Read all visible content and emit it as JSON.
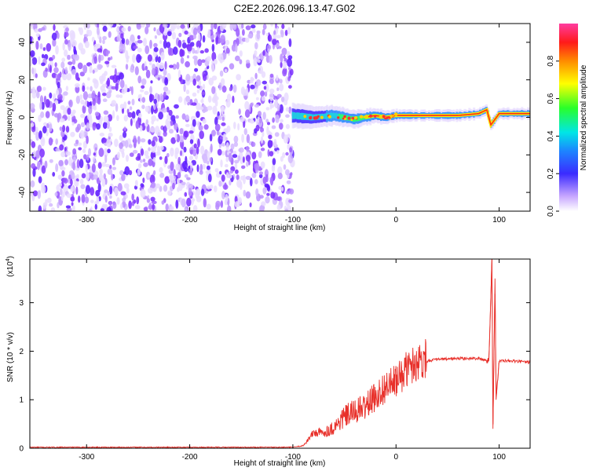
{
  "title": "C2E2.2026.096.13.47.G02",
  "chart_data": [
    {
      "type": "heatmap",
      "xlabel": "Height of straight line (km)",
      "ylabel": "Frequency (Hz)",
      "xlim": [
        -355,
        130
      ],
      "ylim": [
        -50,
        50
      ],
      "x_ticks": [
        -300,
        -200,
        -100,
        0,
        100
      ],
      "x_tick_labels": [
        "-300",
        "-200",
        "-100",
        "0",
        "100"
      ],
      "y_ticks": [
        -40,
        -20,
        0,
        20,
        40
      ],
      "y_tick_labels": [
        "-40",
        "-20",
        "0",
        "20",
        "40"
      ],
      "colorbar": {
        "label": "Normalized spectral amplitude",
        "range": [
          0,
          1
        ],
        "ticks": [
          0.0,
          0.2,
          0.4,
          0.6,
          0.8
        ],
        "tick_labels": [
          "0.0",
          "0.2",
          "0.4",
          "0.6",
          "0.8"
        ],
        "colormap": "rainbow (white-purple-blue-cyan-green-yellow-orange-red-pink)"
      },
      "regions": [
        {
          "x_range": [
            -355,
            -100
          ],
          "description": "broadband noise, amplitude ~0.05-0.2 over full frequency range"
        },
        {
          "x_range": [
            -100,
            130
          ],
          "description": "narrow tone near 0-2 Hz, amplitude rising to ~0.7-0.9 above 0 km; disturbance near 90 km"
        }
      ],
      "tone_frequency": [
        {
          "x": -100,
          "y": 1
        },
        {
          "x": -80,
          "y": 0
        },
        {
          "x": -60,
          "y": 1
        },
        {
          "x": -40,
          "y": -1
        },
        {
          "x": -20,
          "y": 1
        },
        {
          "x": -10,
          "y": 0
        },
        {
          "x": 0,
          "y": 1
        },
        {
          "x": 20,
          "y": 1
        },
        {
          "x": 40,
          "y": 1
        },
        {
          "x": 60,
          "y": 1
        },
        {
          "x": 80,
          "y": 2
        },
        {
          "x": 88,
          "y": 4
        },
        {
          "x": 92,
          "y": -4
        },
        {
          "x": 100,
          "y": 2
        },
        {
          "x": 130,
          "y": 2
        }
      ]
    },
    {
      "type": "line",
      "xlabel": "Height of straight line (km)",
      "ylabel": "SNR (10 * v/v)",
      "y_multiplier_label": "(x10",
      "y_multiplier_exp": "4",
      "y_multiplier_close": ")",
      "xlim": [
        -355,
        130
      ],
      "ylim": [
        0,
        3.9
      ],
      "x_ticks": [
        -300,
        -200,
        -100,
        0,
        100
      ],
      "x_tick_labels": [
        "-300",
        "-200",
        "-100",
        "0",
        "100"
      ],
      "y_ticks": [
        0,
        1,
        2,
        3
      ],
      "y_tick_labels": [
        "0",
        "1",
        "2",
        "3"
      ],
      "series": [
        {
          "color": "#e8302a",
          "points": [
            {
              "x": -355,
              "y": 0.02
            },
            {
              "x": -200,
              "y": 0.02
            },
            {
              "x": -100,
              "y": 0.02
            },
            {
              "x": -90,
              "y": 0.05
            },
            {
              "x": -80,
              "y": 0.3
            },
            {
              "x": -70,
              "y": 0.3
            },
            {
              "x": -60,
              "y": 0.4
            },
            {
              "x": -50,
              "y": 0.6
            },
            {
              "x": -40,
              "y": 0.7
            },
            {
              "x": -30,
              "y": 0.8
            },
            {
              "x": -20,
              "y": 1.0
            },
            {
              "x": -10,
              "y": 1.2
            },
            {
              "x": 0,
              "y": 1.3
            },
            {
              "x": 10,
              "y": 1.55
            },
            {
              "x": 20,
              "y": 1.7
            },
            {
              "x": 30,
              "y": 1.8
            },
            {
              "x": 40,
              "y": 1.83
            },
            {
              "x": 60,
              "y": 1.85
            },
            {
              "x": 80,
              "y": 1.85
            },
            {
              "x": 90,
              "y": 1.8
            },
            {
              "x": 93,
              "y": 3.9
            },
            {
              "x": 94,
              "y": 0.4
            },
            {
              "x": 96,
              "y": 3.5
            },
            {
              "x": 97,
              "y": 1.0
            },
            {
              "x": 100,
              "y": 1.8
            },
            {
              "x": 110,
              "y": 1.8
            },
            {
              "x": 130,
              "y": 1.77
            }
          ]
        }
      ]
    }
  ]
}
